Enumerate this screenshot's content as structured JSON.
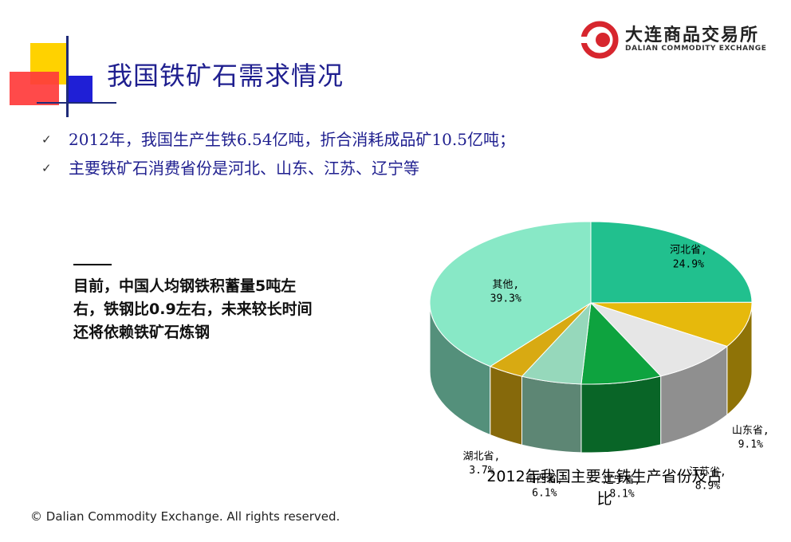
{
  "header": {
    "title": "我国铁矿石需求情况",
    "logo": {
      "cn": "大连商品交易所",
      "en": "DALIAN COMMODITY EXCHANGE",
      "brand_color": "#d7262e"
    }
  },
  "bullets": [
    "2012年，我国生产生铁6.54亿吨，折合消耗成品矿10.5亿吨；",
    "主要铁矿石消费省份是河北、山东、江苏、辽宁等"
  ],
  "bullet_icon": "check-icon",
  "note": "目前，中国人均钢铁积蓄量5吨左右，铁钢比0.9左右，未来较长时间还将依赖铁矿石炼钢",
  "footer": {
    "copyright": "© Dalian Commodity Exchange. All rights reserved."
  },
  "chart_data": {
    "type": "pie",
    "title": "2012年我国主要生铁生产省份及占比",
    "slices": [
      {
        "name": "河北省",
        "value": 24.9,
        "label": "河北省, 24.9%",
        "color": "#21c08e"
      },
      {
        "name": "山东省",
        "value": 9.1,
        "label": "山东省, 9.1%",
        "color": "#e6b90c"
      },
      {
        "name": "江苏省",
        "value": 8.9,
        "label": "江苏省, 8.9%",
        "color": "#e6e6e6"
      },
      {
        "name": "辽宁省",
        "value": 8.1,
        "label": "辽宁省, 8.1%",
        "color": "#0ea33f"
      },
      {
        "name": "山西省",
        "value": 6.1,
        "label": "山西省, 6.1%",
        "color": "#96d8bb"
      },
      {
        "name": "湖北省",
        "value": 3.7,
        "label": "湖北省, 3.7%",
        "color": "#d8aa12"
      },
      {
        "name": "其他",
        "value": 39.3,
        "label": "其他, 39.3%",
        "color": "#88e8c6"
      }
    ]
  }
}
